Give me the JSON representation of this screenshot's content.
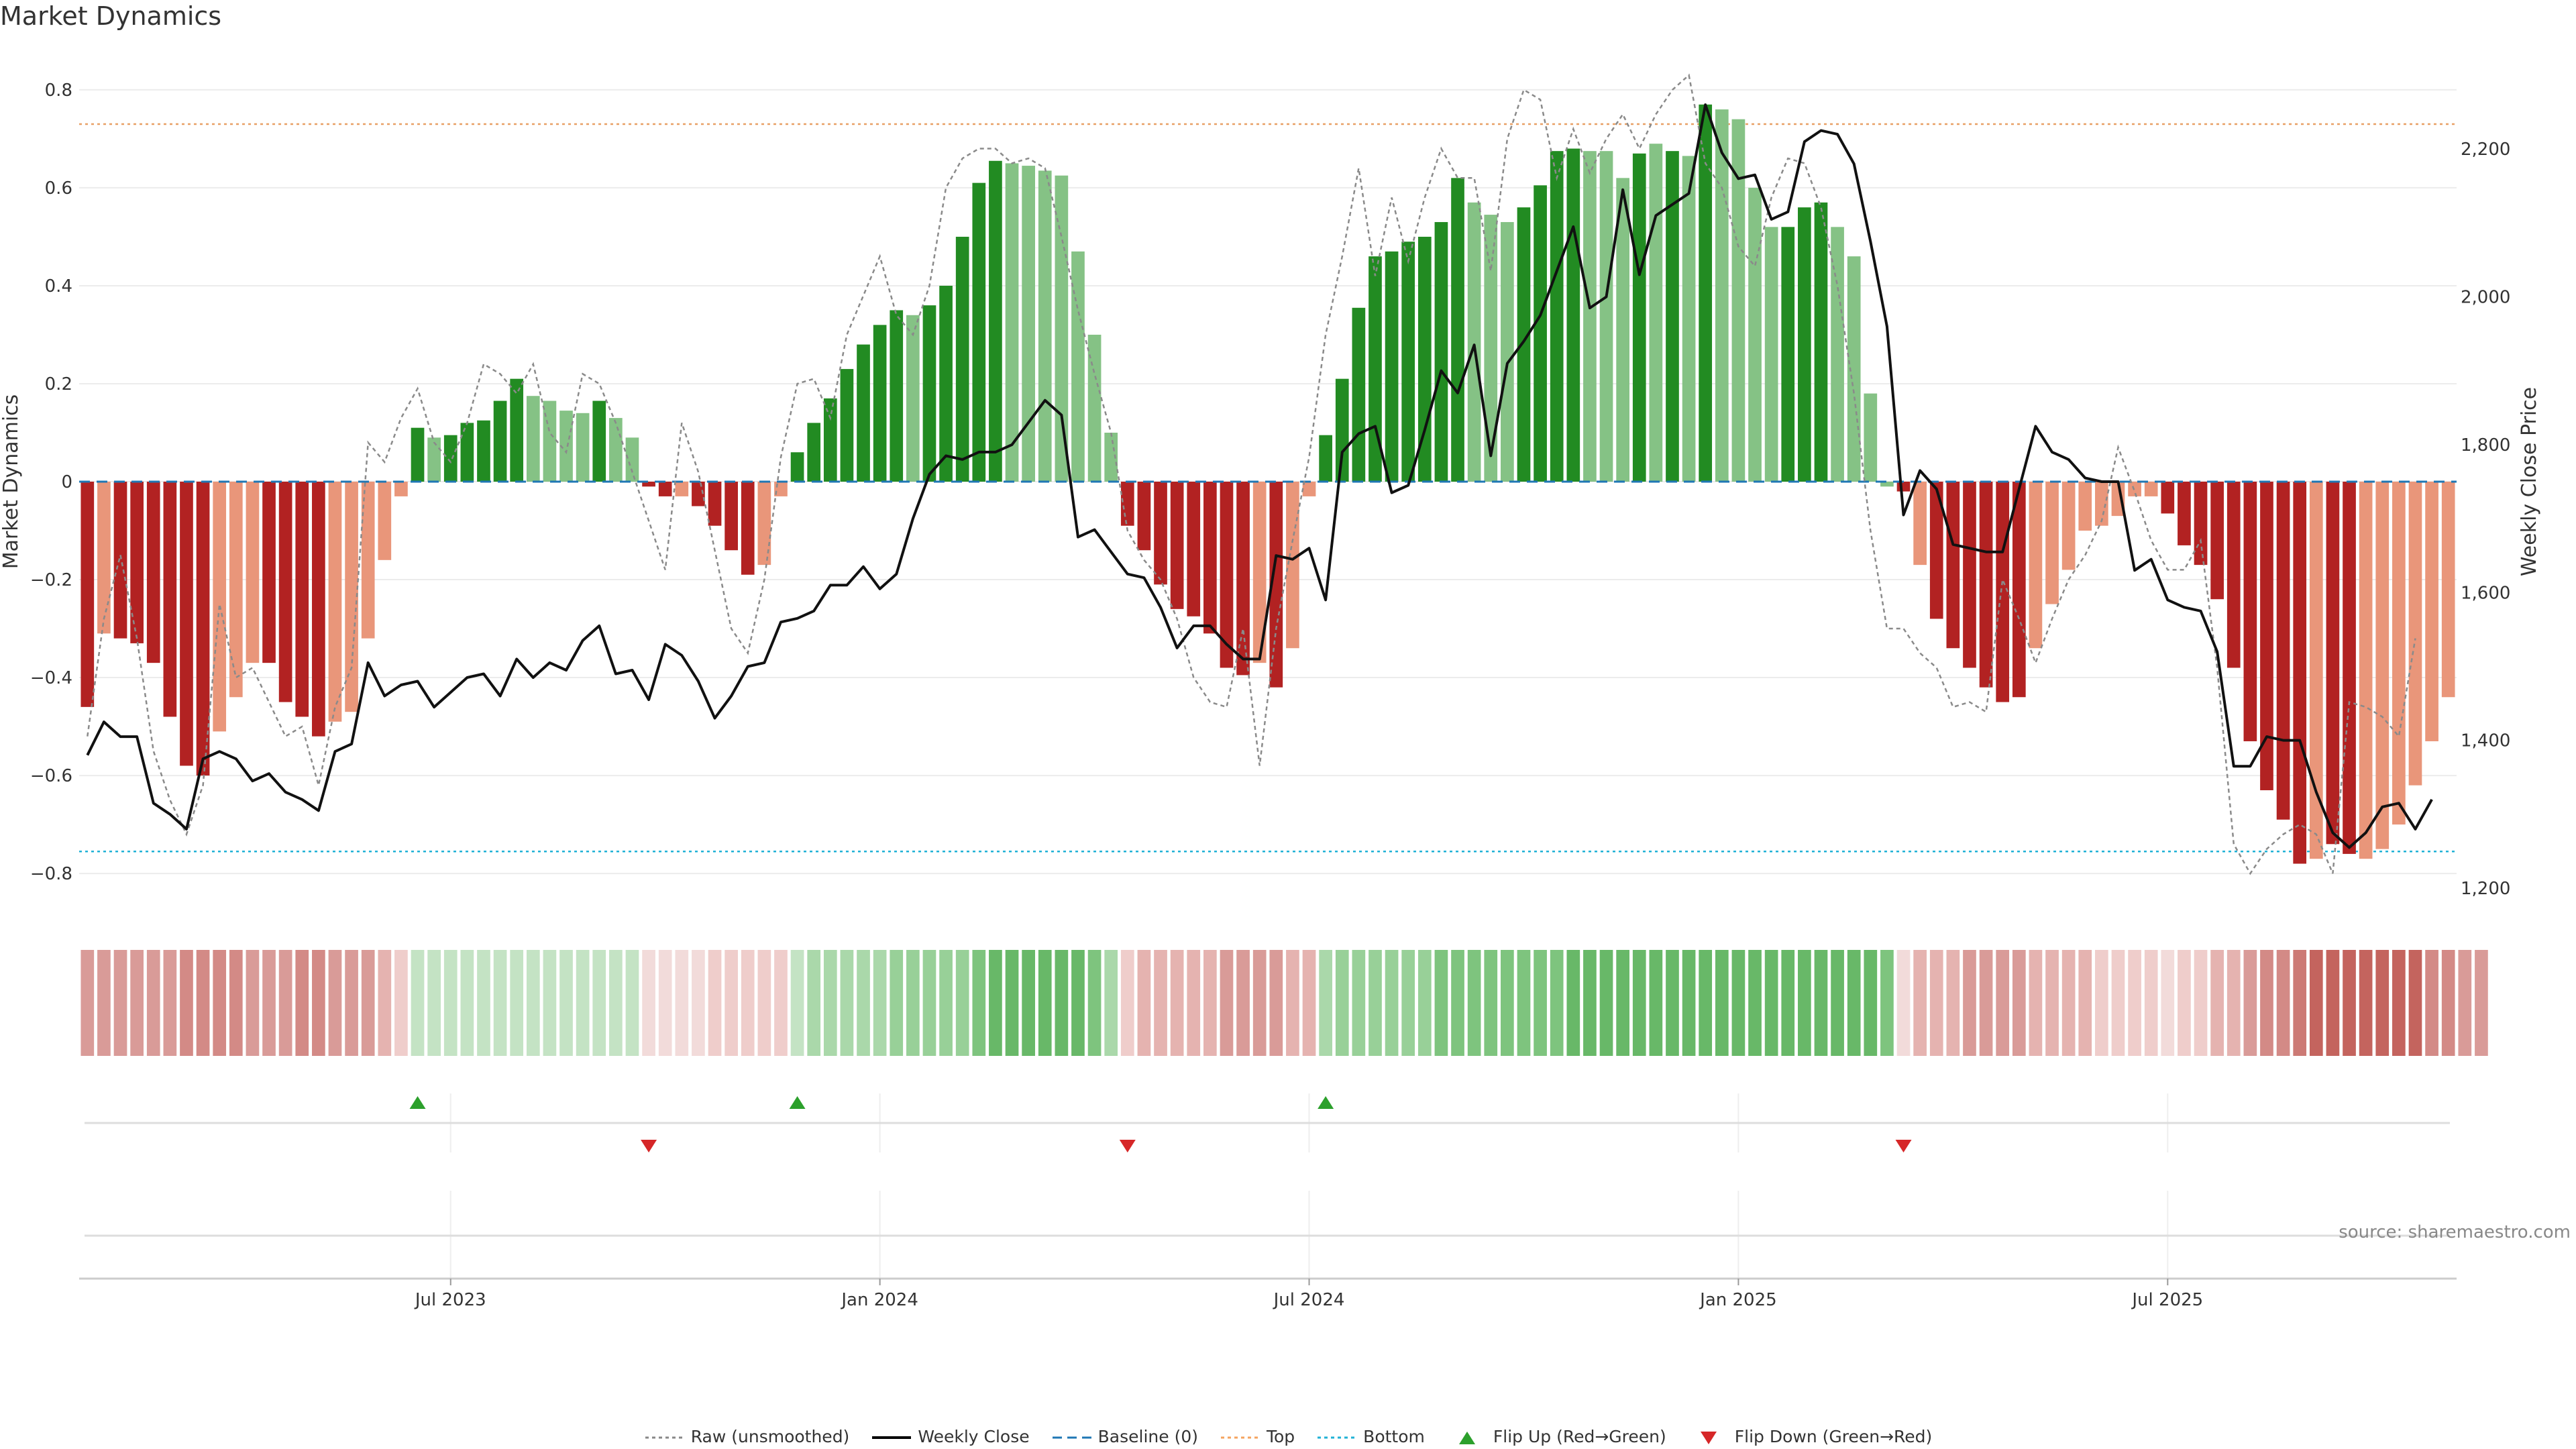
{
  "chart_data": {
    "type": "bar",
    "title": "Market Dynamics",
    "ylabel": "Market Dynamics",
    "y2label": "Weekly Close Price",
    "source": "source: sharemaestro.com",
    "ylim": [
      -0.83,
      0.83
    ],
    "y2lim": [
      1200,
      2300
    ],
    "yticks": [
      "0.8",
      "0.6",
      "0.4",
      "0.2",
      "0",
      "−0.2",
      "−0.4",
      "−0.6",
      "−0.8"
    ],
    "y2ticks": [
      "2,200",
      "2,000",
      "1,800",
      "1,600",
      "1,400",
      "1,200"
    ],
    "xtick_labels": [
      {
        "label": "Jul 2023",
        "week": 22.5
      },
      {
        "label": "Jan 2024",
        "week": 48.5
      },
      {
        "label": "Jul 2024",
        "week": 74.5
      },
      {
        "label": "Jan 2025",
        "week": 100.5
      },
      {
        "label": "Jul 2025",
        "week": 126.5
      }
    ],
    "top_threshold": 0.73,
    "bottom_threshold": -0.755,
    "baseline": 0,
    "bars": [
      -0.46,
      -0.31,
      -0.32,
      -0.33,
      -0.37,
      -0.48,
      -0.58,
      -0.6,
      -0.51,
      -0.44,
      -0.37,
      -0.37,
      -0.45,
      -0.48,
      -0.52,
      -0.49,
      -0.47,
      -0.32,
      -0.16,
      -0.03,
      0.11,
      0.09,
      0.095,
      0.12,
      0.125,
      0.165,
      0.21,
      0.175,
      0.165,
      0.145,
      0.14,
      0.165,
      0.13,
      0.09,
      -0.01,
      -0.03,
      -0.03,
      -0.05,
      -0.09,
      -0.14,
      -0.19,
      -0.17,
      -0.03,
      0.06,
      0.12,
      0.17,
      0.23,
      0.28,
      0.32,
      0.35,
      0.34,
      0.36,
      0.4,
      0.5,
      0.61,
      0.655,
      0.65,
      0.645,
      0.635,
      0.625,
      0.47,
      0.3,
      0.1,
      -0.09,
      -0.14,
      -0.21,
      -0.26,
      -0.275,
      -0.31,
      -0.38,
      -0.395,
      -0.37,
      -0.42,
      -0.34,
      -0.03,
      0.095,
      0.21,
      0.355,
      0.46,
      0.47,
      0.49,
      0.5,
      0.53,
      0.62,
      0.57,
      0.545,
      0.53,
      0.56,
      0.605,
      0.675,
      0.68,
      0.675,
      0.675,
      0.62,
      0.67,
      0.69,
      0.675,
      0.665,
      0.77,
      0.76,
      0.74,
      0.6,
      0.52,
      0.52,
      0.56,
      0.57,
      0.52,
      0.46,
      0.18,
      -0.01,
      -0.02,
      -0.17,
      -0.28,
      -0.34,
      -0.38,
      -0.42,
      -0.45,
      -0.44,
      -0.34,
      -0.25,
      -0.18,
      -0.1,
      -0.09,
      -0.07,
      -0.03,
      -0.03,
      -0.065,
      -0.13,
      -0.17,
      -0.24,
      -0.38,
      -0.53,
      -0.63,
      -0.69,
      -0.78,
      -0.77,
      -0.74,
      -0.76,
      -0.77,
      -0.75,
      -0.7,
      -0.62,
      -0.53,
      -0.44
    ],
    "bar_colors": [
      "#b22222",
      "#e9967a",
      "#b22222",
      "#b22222",
      "#b22222",
      "#b22222",
      "#b22222",
      "#b22222",
      "#e9967a",
      "#e9967a",
      "#e9967a",
      "#b22222",
      "#b22222",
      "#b22222",
      "#b22222",
      "#e9967a",
      "#e9967a",
      "#e9967a",
      "#e9967a",
      "#e9967a",
      "#228b22",
      "#85c285",
      "#228b22",
      "#228b22",
      "#228b22",
      "#228b22",
      "#228b22",
      "#85c285",
      "#85c285",
      "#85c285",
      "#85c285",
      "#228b22",
      "#85c285",
      "#85c285",
      "#b22222",
      "#b22222",
      "#e9967a",
      "#b22222",
      "#b22222",
      "#b22222",
      "#b22222",
      "#e9967a",
      "#e9967a",
      "#228b22",
      "#228b22",
      "#228b22",
      "#228b22",
      "#228b22",
      "#228b22",
      "#228b22",
      "#85c285",
      "#228b22",
      "#228b22",
      "#228b22",
      "#228b22",
      "#228b22",
      "#85c285",
      "#85c285",
      "#85c285",
      "#85c285",
      "#85c285",
      "#85c285",
      "#85c285",
      "#b22222",
      "#b22222",
      "#b22222",
      "#b22222",
      "#b22222",
      "#b22222",
      "#b22222",
      "#b22222",
      "#e9967a",
      "#b22222",
      "#e9967a",
      "#e9967a",
      "#228b22",
      "#228b22",
      "#228b22",
      "#228b22",
      "#228b22",
      "#228b22",
      "#228b22",
      "#228b22",
      "#228b22",
      "#85c285",
      "#85c285",
      "#85c285",
      "#228b22",
      "#228b22",
      "#228b22",
      "#228b22",
      "#85c285",
      "#85c285",
      "#85c285",
      "#228b22",
      "#85c285",
      "#228b22",
      "#85c285",
      "#228b22",
      "#85c285",
      "#85c285",
      "#85c285",
      "#85c285",
      "#228b22",
      "#228b22",
      "#228b22",
      "#85c285",
      "#85c285",
      "#85c285",
      "#85c285",
      "#b22222",
      "#e9967a",
      "#b22222",
      "#b22222",
      "#b22222",
      "#b22222",
      "#b22222",
      "#b22222",
      "#e9967a",
      "#e9967a",
      "#e9967a",
      "#e9967a",
      "#e9967a",
      "#e9967a",
      "#e9967a",
      "#e9967a",
      "#b22222",
      "#b22222",
      "#b22222",
      "#b22222",
      "#b22222",
      "#b22222",
      "#b22222",
      "#b22222",
      "#b22222",
      "#e9967a",
      "#b22222",
      "#b22222",
      "#e9967a",
      "#e9967a",
      "#e9967a",
      "#e9967a",
      "#e9967a",
      "#e9967a",
      "#e9967a",
      "#e9967a"
    ],
    "raw": [
      -0.52,
      -0.28,
      -0.15,
      -0.32,
      -0.55,
      -0.65,
      -0.72,
      -0.62,
      -0.25,
      -0.4,
      -0.38,
      -0.45,
      -0.52,
      -0.5,
      -0.62,
      -0.46,
      -0.38,
      0.08,
      0.04,
      0.13,
      0.19,
      0.08,
      0.04,
      0.12,
      0.24,
      0.22,
      0.18,
      0.24,
      0.1,
      0.06,
      0.22,
      0.2,
      0.12,
      0.02,
      -0.08,
      -0.18,
      0.12,
      0.02,
      -0.14,
      -0.3,
      -0.35,
      -0.2,
      0.05,
      0.2,
      0.21,
      0.13,
      0.3,
      0.38,
      0.46,
      0.34,
      0.3,
      0.4,
      0.6,
      0.66,
      0.68,
      0.68,
      0.65,
      0.66,
      0.64,
      0.5,
      0.35,
      0.22,
      0.1,
      -0.1,
      -0.16,
      -0.2,
      -0.28,
      -0.4,
      -0.45,
      -0.46,
      -0.3,
      -0.58,
      -0.3,
      -0.12,
      0.05,
      0.3,
      0.46,
      0.64,
      0.42,
      0.58,
      0.45,
      0.58,
      0.68,
      0.62,
      0.62,
      0.43,
      0.7,
      0.8,
      0.78,
      0.62,
      0.72,
      0.63,
      0.7,
      0.75,
      0.68,
      0.75,
      0.8,
      0.83,
      0.65,
      0.6,
      0.48,
      0.44,
      0.58,
      0.66,
      0.65,
      0.56,
      0.4,
      0.18,
      -0.1,
      -0.3,
      -0.3,
      -0.35,
      -0.38,
      -0.46,
      -0.45,
      -0.47,
      -0.2,
      -0.28,
      -0.37,
      -0.28,
      -0.2,
      -0.15,
      -0.08,
      0.07,
      -0.02,
      -0.12,
      -0.18,
      -0.18,
      -0.12,
      -0.38,
      -0.74,
      -0.8,
      -0.75,
      -0.72,
      -0.7,
      -0.72,
      -0.8,
      -0.45,
      -0.46,
      -0.48,
      -0.52,
      -0.32
    ],
    "close": [
      1380,
      1425,
      1405,
      1405,
      1315,
      1300,
      1280,
      1375,
      1385,
      1375,
      1345,
      1355,
      1330,
      1320,
      1305,
      1385,
      1395,
      1505,
      1460,
      1475,
      1480,
      1445,
      1465,
      1485,
      1490,
      1460,
      1510,
      1485,
      1505,
      1495,
      1535,
      1555,
      1490,
      1495,
      1455,
      1530,
      1515,
      1480,
      1430,
      1460,
      1500,
      1505,
      1560,
      1565,
      1575,
      1610,
      1610,
      1635,
      1605,
      1625,
      1700,
      1760,
      1785,
      1780,
      1790,
      1790,
      1800,
      1830,
      1860,
      1840,
      1675,
      1685,
      1655,
      1625,
      1620,
      1580,
      1525,
      1555,
      1555,
      1530,
      1510,
      1510,
      1650,
      1645,
      1660,
      1590,
      1790,
      1815,
      1825,
      1735,
      1745,
      1820,
      1900,
      1870,
      1935,
      1785,
      1910,
      1940,
      1975,
      2035,
      2095,
      1985,
      2000,
      2145,
      2030,
      2110,
      2125,
      2140,
      2260,
      2195,
      2160,
      2165,
      2105,
      2115,
      2210,
      2225,
      2220,
      2180,
      2075,
      1960,
      1705,
      1765,
      1740,
      1665,
      1660,
      1655,
      1655,
      1740,
      1825,
      1790,
      1780,
      1755,
      1750,
      1750,
      1630,
      1645,
      1590,
      1580,
      1575,
      1520,
      1365,
      1365,
      1405,
      1400,
      1400,
      1330,
      1275,
      1255,
      1275,
      1310,
      1315,
      1280,
      1320
    ],
    "regime_colors": [
      "#d99b98",
      "#d99b98",
      "#d99b98",
      "#d99b98",
      "#d99b98",
      "#d99b98",
      "#d38a86",
      "#d38a86",
      "#d38a86",
      "#d38a86",
      "#d99b98",
      "#d99b98",
      "#d99b98",
      "#d38a86",
      "#d38a86",
      "#d99b98",
      "#d99b98",
      "#d99b98",
      "#e5b3b0",
      "#efcdcb",
      "#c4e3c4",
      "#c4e3c4",
      "#c4e3c4",
      "#c4e3c4",
      "#c4e3c4",
      "#c4e3c4",
      "#c4e3c4",
      "#c4e3c4",
      "#c4e3c4",
      "#c4e3c4",
      "#c4e3c4",
      "#c4e3c4",
      "#c4e3c4",
      "#c4e3c4",
      "#f2dbda",
      "#f2dbda",
      "#f2dbda",
      "#f2dbda",
      "#efcdcb",
      "#efcdcb",
      "#efcdcb",
      "#efcdcb",
      "#efcdcb",
      "#c4e3c4",
      "#aad8aa",
      "#aad8aa",
      "#aad8aa",
      "#aad8aa",
      "#aad8aa",
      "#98d098",
      "#98d098",
      "#98d098",
      "#98d098",
      "#98d098",
      "#7ec47e",
      "#68b868",
      "#68b868",
      "#68b868",
      "#68b868",
      "#68b868",
      "#68b868",
      "#7ec47e",
      "#aad8aa",
      "#efcdcb",
      "#e5b3b0",
      "#e5b3b0",
      "#e5b3b0",
      "#e5b3b0",
      "#e5b3b0",
      "#d99b98",
      "#d99b98",
      "#d99b98",
      "#d99b98",
      "#e5b3b0",
      "#e5b3b0",
      "#aad8aa",
      "#98d098",
      "#98d098",
      "#98d098",
      "#98d098",
      "#98d098",
      "#98d098",
      "#7ec47e",
      "#7ec47e",
      "#7ec47e",
      "#7ec47e",
      "#7ec47e",
      "#7ec47e",
      "#7ec47e",
      "#7ec47e",
      "#68b868",
      "#68b868",
      "#68b868",
      "#68b868",
      "#68b868",
      "#68b868",
      "#68b868",
      "#68b868",
      "#68b868",
      "#68b868",
      "#68b868",
      "#68b868",
      "#68b868",
      "#68b868",
      "#68b868",
      "#68b868",
      "#68b868",
      "#68b868",
      "#68b868",
      "#7ec47e",
      "#f2dbda",
      "#e5b3b0",
      "#e5b3b0",
      "#e5b3b0",
      "#d99b98",
      "#d99b98",
      "#d99b98",
      "#d99b98",
      "#e5b3b0",
      "#e5b3b0",
      "#e5b3b0",
      "#e5b3b0",
      "#efcdcb",
      "#efcdcb",
      "#efcdcb",
      "#efcdcb",
      "#f2dbda",
      "#efcdcb",
      "#efcdcb",
      "#e5b3b0",
      "#e5b3b0",
      "#d99b98",
      "#d38a86",
      "#d38a86",
      "#cc7a75",
      "#c4645e",
      "#c4645e",
      "#c4645e",
      "#c4645e",
      "#c4645e",
      "#c4645e",
      "#c4645e",
      "#d38a86",
      "#d38a86",
      "#d99b98",
      "#d99b98"
    ],
    "flips_up": [
      20,
      43,
      75
    ],
    "flips_down": [
      34,
      63,
      110
    ],
    "legend": [
      {
        "label": "Raw (unsmoothed)",
        "kind": "dotted",
        "color": "#888888"
      },
      {
        "label": "Weekly Close",
        "kind": "line",
        "color": "#000000"
      },
      {
        "label": "Baseline (0)",
        "kind": "dashed",
        "color": "#1f77b4"
      },
      {
        "label": "Top",
        "kind": "dotted",
        "color": "#f4a460"
      },
      {
        "label": "Bottom",
        "kind": "dotted",
        "color": "#20b2d6"
      },
      {
        "label": "Flip Up (Red→Green)",
        "kind": "tri-up",
        "color": "#2ca02c"
      },
      {
        "label": "Flip Down (Green→Red)",
        "kind": "tri-down",
        "color": "#d62728"
      }
    ],
    "grid": true
  }
}
